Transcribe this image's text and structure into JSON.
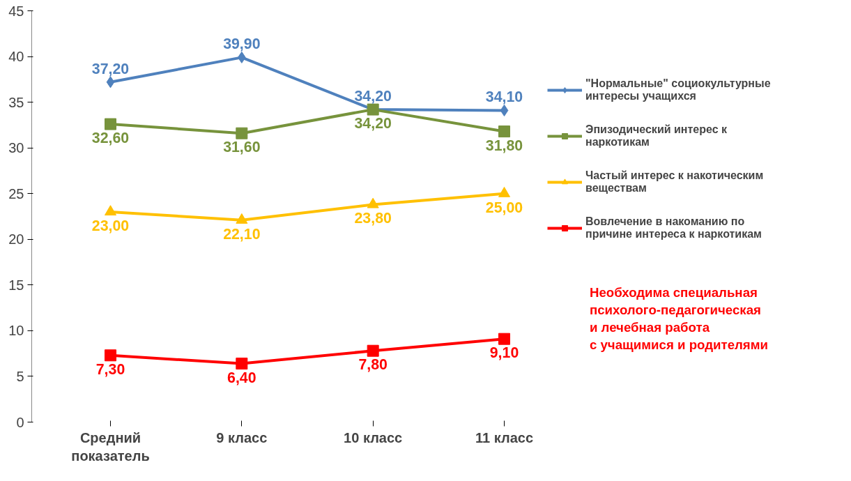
{
  "chart_data": {
    "type": "line",
    "categories": [
      "Средний\nпоказатель",
      "9 класс",
      "10 класс",
      "11 класс"
    ],
    "series": [
      {
        "name": "\"Нормальные\" социокультурные\nинтересы учащихся",
        "color": "#4f81bd",
        "marker": "diamond",
        "values": [
          37.2,
          39.9,
          34.2,
          34.1
        ],
        "value_labels": [
          "37,20",
          "39,90",
          "34,20",
          "34,10"
        ]
      },
      {
        "name": "Эпизодический интерес к\nнаркотикам",
        "color": "#77933c",
        "marker": "square",
        "values": [
          32.6,
          31.6,
          34.2,
          31.8
        ],
        "value_labels": [
          "32,60",
          "31,60",
          "34,20",
          "31,80"
        ]
      },
      {
        "name": "Частый интерес к накотическим\nвеществам",
        "color": "#ffc000",
        "marker": "triangle",
        "values": [
          23.0,
          22.1,
          23.8,
          25.0
        ],
        "value_labels": [
          "23,00",
          "22,10",
          "23,80",
          "25,00"
        ]
      },
      {
        "name": "Вовлечение в накоманию по\nпричине интереса к наркотикам",
        "color": "#ff0000",
        "marker": "square",
        "values": [
          7.3,
          6.4,
          7.8,
          9.1
        ],
        "value_labels": [
          "7,30",
          "6,40",
          "7,80",
          "9,10"
        ]
      }
    ],
    "ylim": [
      0,
      45
    ],
    "yticks": [
      0,
      5,
      10,
      15,
      20,
      25,
      30,
      35,
      40,
      45
    ],
    "grid": false,
    "legend": "right",
    "annotations": [
      "Необходима специальная\nпсихолого-педагогическая\n и лечебная работа\nс учащимися и родителями"
    ]
  }
}
